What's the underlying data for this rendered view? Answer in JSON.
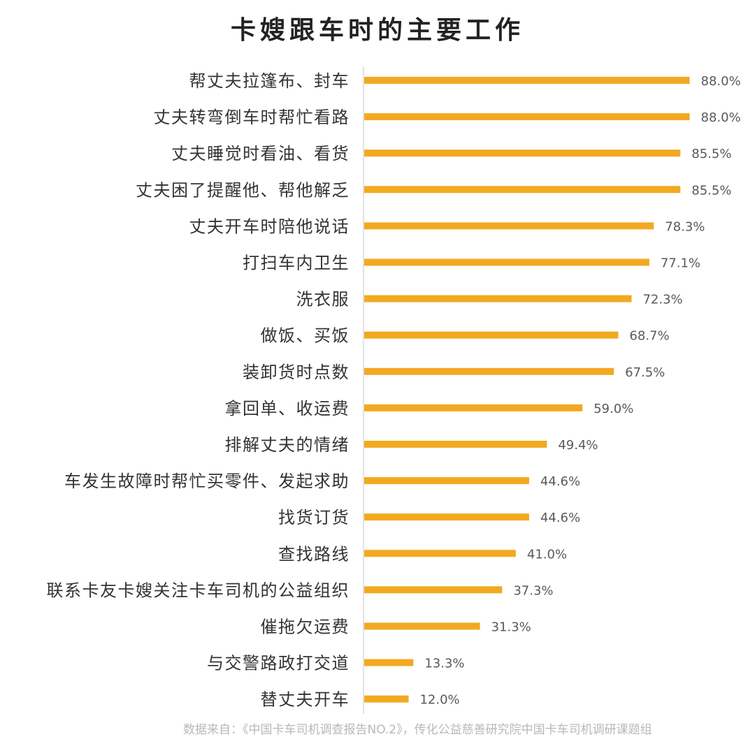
{
  "chart_data": {
    "type": "bar",
    "orientation": "horizontal",
    "title": "卡嫂跟车时的主要工作",
    "categories": [
      "帮丈夫拉篷布、封车",
      "丈夫转弯倒车时帮忙看路",
      "丈夫睡觉时看油、看货",
      "丈夫困了提醒他、帮他解乏",
      "丈夫开车时陪他说话",
      "打扫车内卫生",
      "洗衣服",
      "做饭、买饭",
      "装卸货时点数",
      "拿回单、收运费",
      "排解丈夫的情绪",
      "车发生故障时帮忙买零件、发起求助",
      "找货订货",
      "查找路线",
      "联系卡友卡嫂关注卡车司机的公益组织",
      "催拖欠运费",
      "与交警路政打交道",
      "替丈夫开车"
    ],
    "values": [
      88.0,
      88.0,
      85.5,
      85.5,
      78.3,
      77.1,
      72.3,
      68.7,
      67.5,
      59.0,
      49.4,
      44.6,
      44.6,
      41.0,
      37.3,
      31.3,
      13.3,
      12.0
    ],
    "value_labels": [
      "88.0%",
      "88.0%",
      "85.5%",
      "85.5%",
      "78.3%",
      "77.1%",
      "72.3%",
      "68.7%",
      "67.5%",
      "59.0%",
      "49.4%",
      "44.6%",
      "44.6%",
      "41.0%",
      "37.3%",
      "31.3%",
      "13.3%",
      "12.0%"
    ],
    "xlim": [
      0,
      100
    ],
    "grid": false,
    "legend": "none",
    "bar_color": "#F2A922",
    "axis_color": "#d9d9d9",
    "label_color": "#333333",
    "value_label_color": "#595959"
  },
  "source": "数据来自：《中国卡车司机调查报告NO.2》，传化公益慈善研究院中国卡车司机调研课题组"
}
